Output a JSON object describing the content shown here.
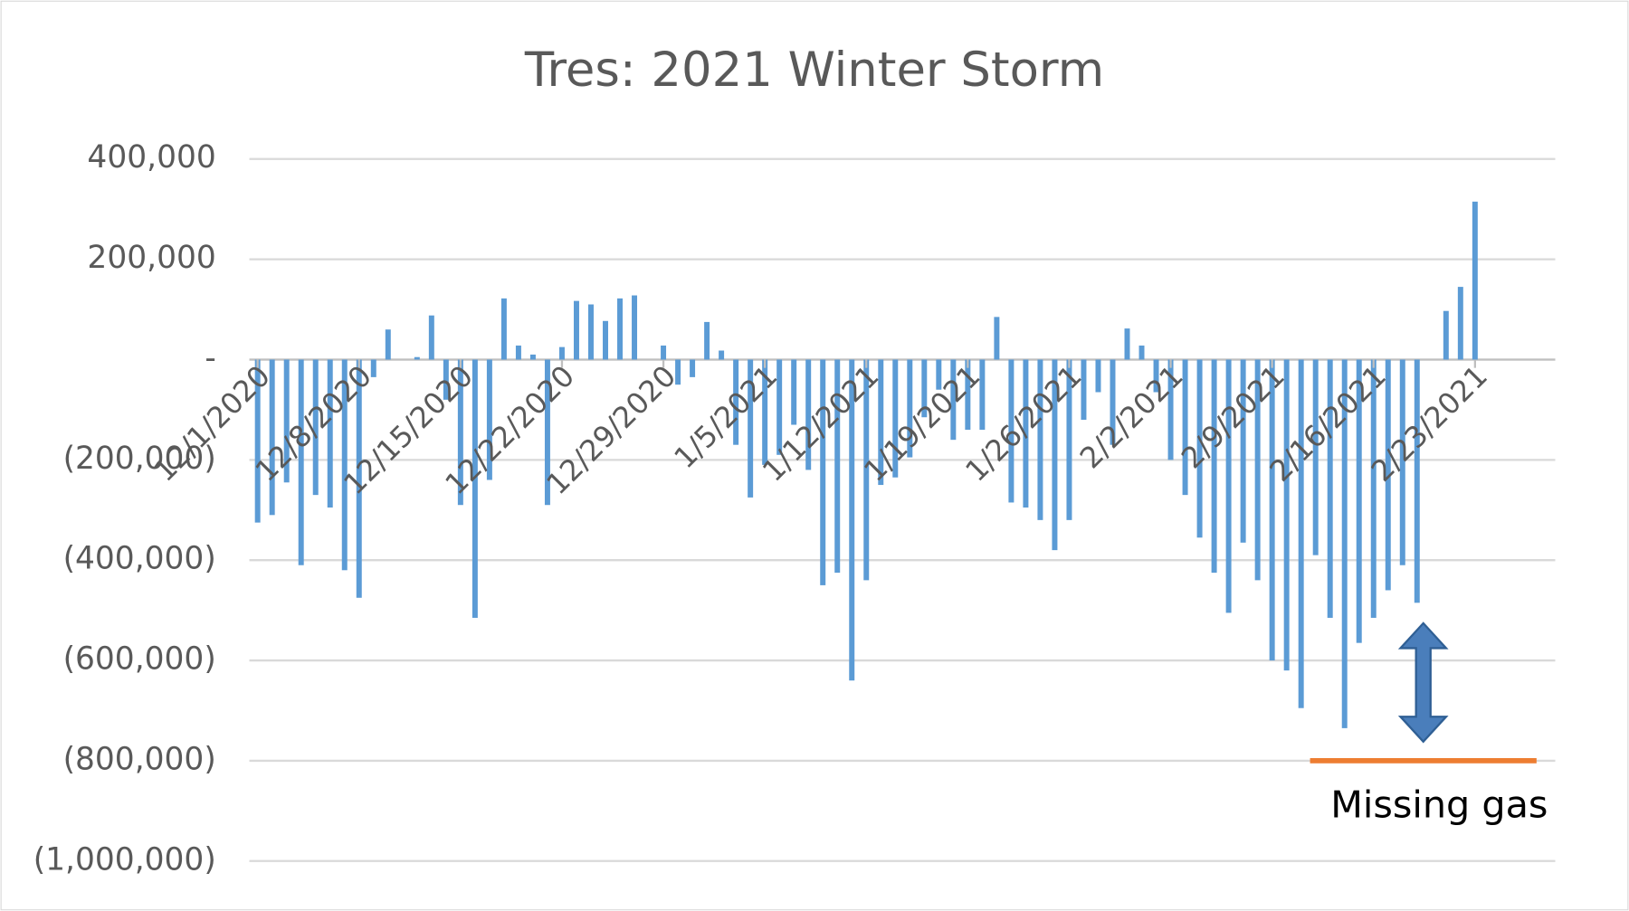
{
  "chart_data": {
    "type": "bar",
    "title": "Tres: 2021 Winter Storm",
    "categories": [
      "12/1/2020",
      null,
      null,
      null,
      null,
      null,
      null,
      "12/8/2020",
      null,
      null,
      null,
      null,
      null,
      null,
      "12/15/2020",
      null,
      null,
      null,
      null,
      null,
      null,
      "12/22/2020",
      null,
      null,
      null,
      null,
      null,
      null,
      "12/29/2020",
      null,
      null,
      null,
      null,
      null,
      null,
      "1/5/2021",
      null,
      null,
      null,
      null,
      null,
      null,
      "1/12/2021",
      null,
      null,
      null,
      null,
      null,
      null,
      "1/19/2021",
      null,
      null,
      null,
      null,
      null,
      null,
      "1/26/2021",
      null,
      null,
      null,
      null,
      null,
      null,
      "2/2/2021",
      null,
      null,
      null,
      null,
      null,
      null,
      "2/9/2021",
      null,
      null,
      null,
      null,
      null,
      null,
      "2/16/2021",
      null,
      null,
      null,
      null,
      null,
      null,
      "2/23/2021"
    ],
    "values": [
      -325000,
      -310000,
      -245000,
      -410000,
      -270000,
      -295000,
      -420000,
      -475000,
      -35000,
      60000,
      0,
      5000,
      88000,
      -80000,
      -290000,
      -515000,
      -240000,
      122000,
      28000,
      10000,
      -290000,
      25000,
      117000,
      110000,
      77000,
      122000,
      128000,
      0,
      28000,
      -50000,
      -35000,
      75000,
      18000,
      -170000,
      -275000,
      -210000,
      -190000,
      -130000,
      -220000,
      -450000,
      -425000,
      -640000,
      -440000,
      -250000,
      -235000,
      -195000,
      -115000,
      -60000,
      -160000,
      -140000,
      -140000,
      85000,
      -285000,
      -295000,
      -320000,
      -380000,
      -320000,
      -120000,
      -65000,
      -170000,
      62000,
      28000,
      -65000,
      -200000,
      -270000,
      -355000,
      -425000,
      -505000,
      -365000,
      -440000,
      -600000,
      -620000,
      -695000,
      -390000,
      -515000,
      -735000,
      -565000,
      -515000,
      -460000,
      -410000,
      -485000,
      0,
      97000,
      145000,
      315000
    ],
    "color": "#5b9bd5",
    "ylim": [
      -1000000,
      400000
    ],
    "yticks": [
      {
        "value": -1000000,
        "label": "(1,000,000)"
      },
      {
        "value": -800000,
        "label": "(800,000)"
      },
      {
        "value": -600000,
        "label": "(600,000)"
      },
      {
        "value": -400000,
        "label": "(400,000)"
      },
      {
        "value": -200000,
        "label": "(200,000)"
      },
      {
        "value": 0,
        "label": "-"
      },
      {
        "value": 200000,
        "label": "200,000"
      },
      {
        "value": 400000,
        "label": "400,000"
      }
    ],
    "grid": true,
    "annotations": [
      {
        "text": "Missing gas",
        "y": -800000,
        "color": "#ed7d31"
      }
    ]
  }
}
